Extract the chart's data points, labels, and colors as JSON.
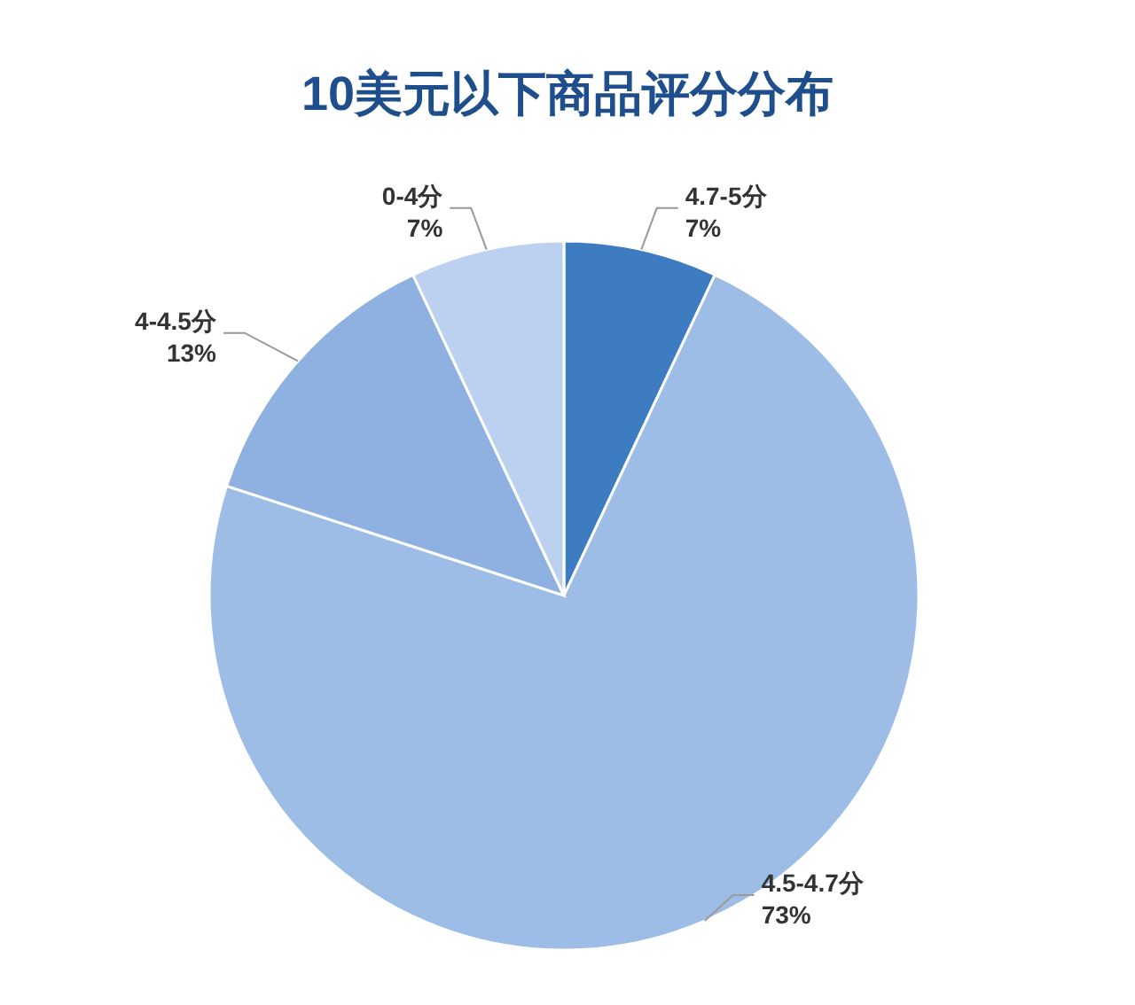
{
  "chart_data": {
    "type": "pie",
    "title": "10美元以下商品评分分布",
    "categories": [
      "4.7-5分",
      "4.5-4.7分",
      "4-4.5分",
      "0-4分"
    ],
    "values": [
      7,
      73,
      13,
      7
    ],
    "colors": [
      "#3e7cc2",
      "#9dbde7",
      "#8eb1e2",
      "#bcd1f0"
    ],
    "value_labels": [
      "7%",
      "73%",
      "13%",
      "7%"
    ]
  }
}
